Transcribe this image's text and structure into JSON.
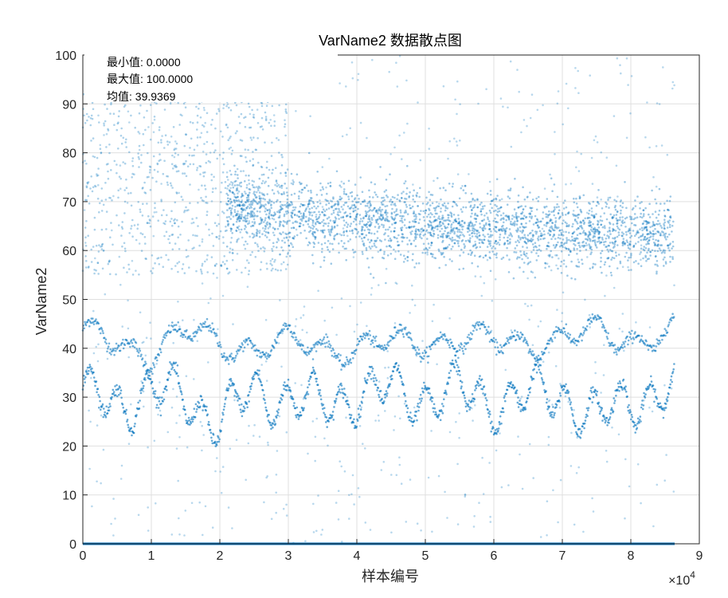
{
  "chart_data": {
    "type": "scatter",
    "title": "VarName2 数据散点图",
    "xlabel": "样本编号",
    "ylabel": "VarName2",
    "x_multiplier": "×10^4",
    "xlim": [
      0,
      90000
    ],
    "ylim": [
      0,
      100
    ],
    "grid": true,
    "marker_color": "#0072BD",
    "x_ticks": [
      "0",
      "1",
      "2",
      "3",
      "4",
      "5",
      "6",
      "7",
      "8",
      "9"
    ],
    "y_ticks": [
      "0",
      "10",
      "20",
      "30",
      "40",
      "50",
      "60",
      "70",
      "80",
      "90",
      "100"
    ],
    "annotations": [
      "最小值: 0.0000",
      "最大值: 100.0000",
      "均值: 39.9369"
    ],
    "n_samples": 86400,
    "series": [
      {
        "description": "band trend (sample index -> value)",
        "points": [
          [
            0,
            42.5
          ],
          [
            5000,
            41.5
          ],
          [
            10000,
            39
          ],
          [
            15000,
            43
          ],
          [
            20000,
            41.5
          ],
          [
            25000,
            40
          ],
          [
            30000,
            41
          ],
          [
            35000,
            40.5
          ],
          [
            40000,
            40
          ],
          [
            45000,
            41
          ],
          [
            50000,
            41.5
          ],
          [
            55000,
            42
          ],
          [
            60000,
            41
          ],
          [
            65000,
            41.5
          ],
          [
            70000,
            42
          ],
          [
            75000,
            43
          ],
          [
            80000,
            42
          ],
          [
            86400,
            43
          ]
        ]
      },
      {
        "description": "band trend (sample index -> value)",
        "points": [
          [
            0,
            30
          ],
          [
            5000,
            29
          ],
          [
            10000,
            31
          ],
          [
            15000,
            30
          ],
          [
            20000,
            25
          ],
          [
            25000,
            31
          ],
          [
            30000,
            30
          ],
          [
            35000,
            28
          ],
          [
            40000,
            31
          ],
          [
            45000,
            31
          ],
          [
            50000,
            30
          ],
          [
            55000,
            31
          ],
          [
            60000,
            29
          ],
          [
            65000,
            30
          ],
          [
            70000,
            31
          ],
          [
            75000,
            25
          ],
          [
            80000,
            30
          ],
          [
            86400,
            31
          ]
        ]
      },
      {
        "description": "dense cluster center (sample index -> value)",
        "points": [
          [
            21000,
            69
          ],
          [
            30000,
            67.5
          ],
          [
            40000,
            66
          ],
          [
            50000,
            65
          ],
          [
            60000,
            64.5
          ],
          [
            70000,
            64
          ],
          [
            80000,
            63.5
          ],
          [
            86400,
            63
          ]
        ]
      },
      {
        "description": "baseline",
        "points": [
          [
            0,
            0
          ],
          [
            86400,
            0
          ]
        ]
      }
    ]
  }
}
